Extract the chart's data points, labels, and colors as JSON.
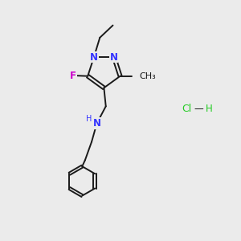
{
  "background_color": "#ebebeb",
  "bond_color": "#1a1a1a",
  "N_color": "#3333ff",
  "F_color": "#cc00cc",
  "Cl_color": "#22cc22",
  "H_color": "#22cc22",
  "bond_lw": 1.4,
  "font_size": 8.5,
  "figsize": [
    3.0,
    3.0
  ],
  "dpi": 100,
  "xlim": [
    0,
    10
  ],
  "ylim": [
    0,
    10
  ]
}
